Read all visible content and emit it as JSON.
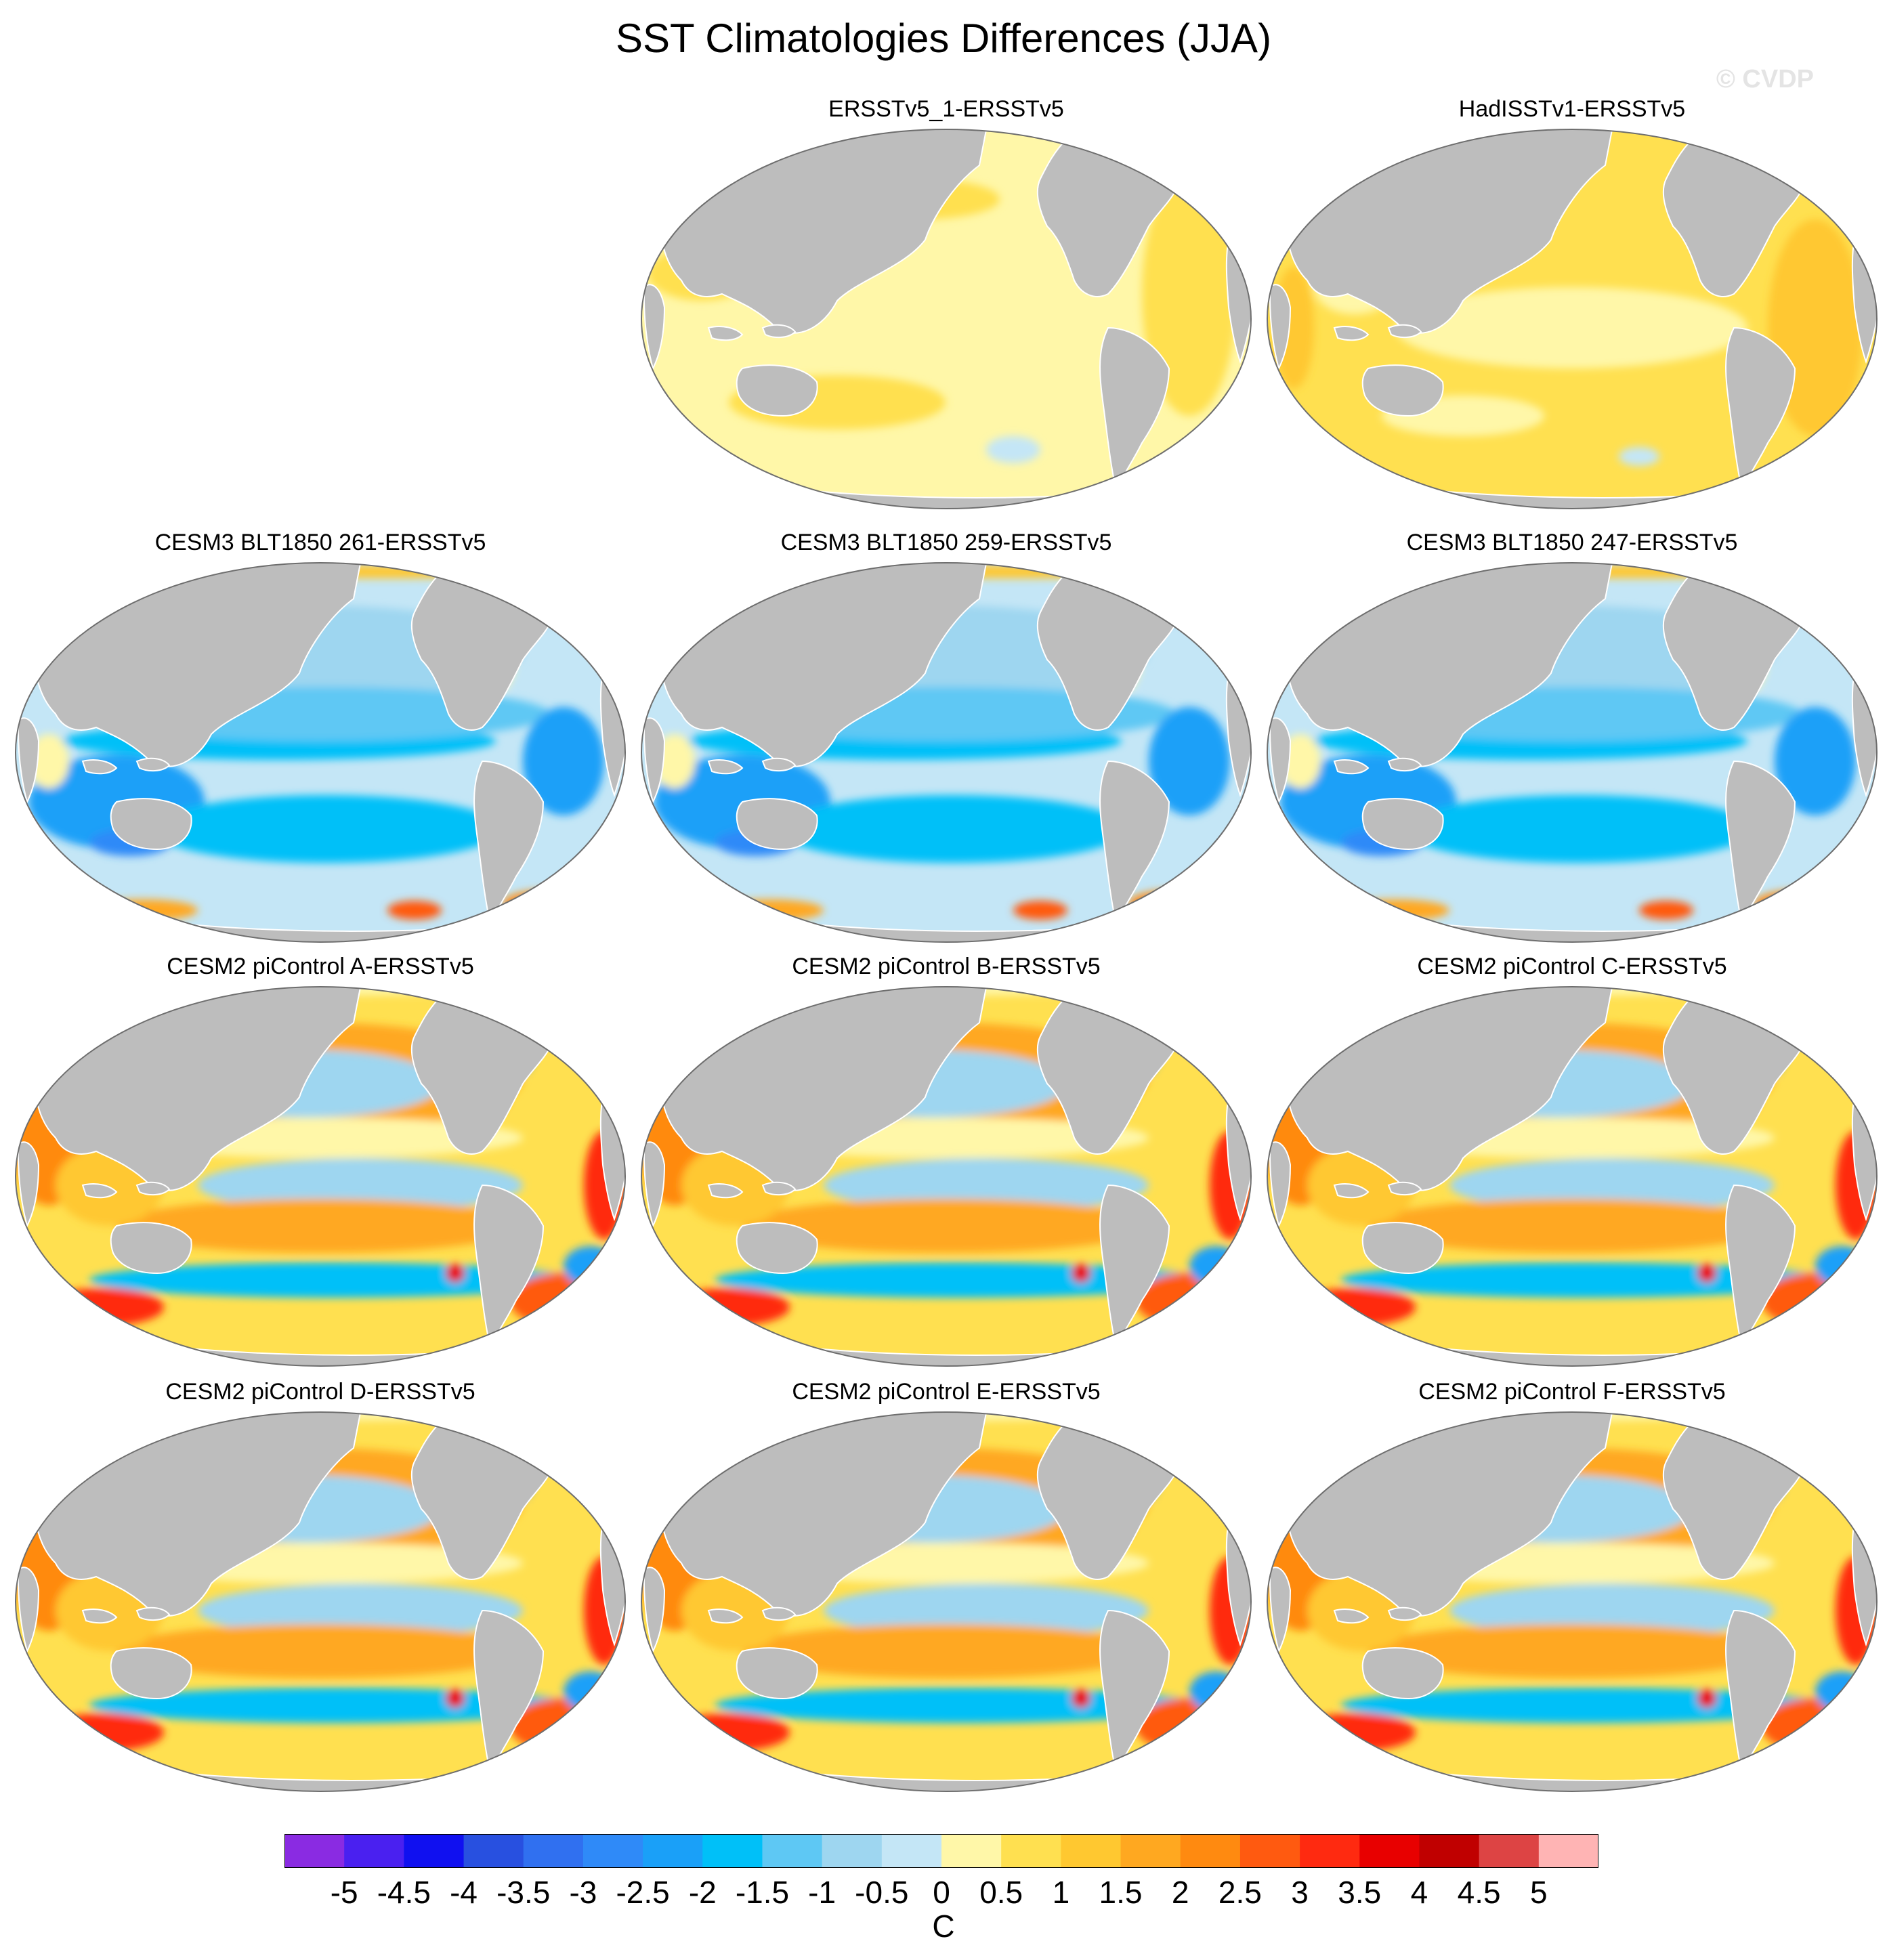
{
  "title": "SST Climatologies Differences (JJA)",
  "watermark": "© CVDP",
  "panels": [
    {
      "title": "ERSSTv5_1-ERSSTv5",
      "pattern": "obs-small"
    },
    {
      "title": "HadISSTv1-ERSSTv5",
      "pattern": "obs-warm"
    },
    {
      "title": "CESM3 BLT1850 261-ERSSTv5",
      "pattern": "cesm3"
    },
    {
      "title": "CESM3 BLT1850 259-ERSSTv5",
      "pattern": "cesm3"
    },
    {
      "title": "CESM3 BLT1850 247-ERSSTv5",
      "pattern": "cesm3"
    },
    {
      "title": "CESM2 piControl A-ERSSTv5",
      "pattern": "cesm2"
    },
    {
      "title": "CESM2 piControl B-ERSSTv5",
      "pattern": "cesm2"
    },
    {
      "title": "CESM2 piControl C-ERSSTv5",
      "pattern": "cesm2"
    },
    {
      "title": "CESM2 piControl D-ERSSTv5",
      "pattern": "cesm2"
    },
    {
      "title": "CESM2 piControl E-ERSSTv5",
      "pattern": "cesm2"
    },
    {
      "title": "CESM2 piControl F-ERSSTv5",
      "pattern": "cesm2"
    }
  ],
  "colorbar": {
    "unit": "C",
    "tick_labels": [
      "-5",
      "-4.5",
      "-4",
      "-3.5",
      "-3",
      "-2.5",
      "-2",
      "-1.5",
      "-1",
      "-0.5",
      "0",
      "0.5",
      "1",
      "1.5",
      "2",
      "2.5",
      "3",
      "3.5",
      "4",
      "4.5",
      "5"
    ],
    "colors": [
      "#8a2be2",
      "#4a20f0",
      "#1010f0",
      "#2850e0",
      "#3070f0",
      "#2f8af8",
      "#1aa0f8",
      "#00c0f8",
      "#5ec8f4",
      "#9ed6f0",
      "#c4e6f6",
      "#fff7a8",
      "#ffe050",
      "#ffc830",
      "#ffa820",
      "#ff8a10",
      "#ff5a10",
      "#ff2a10",
      "#e80000",
      "#c00000",
      "#dd4444",
      "#ffb4b4"
    ]
  },
  "map_colors": {
    "land": "#bdbdbd",
    "ocean_outline": "#6e6e6e"
  }
}
